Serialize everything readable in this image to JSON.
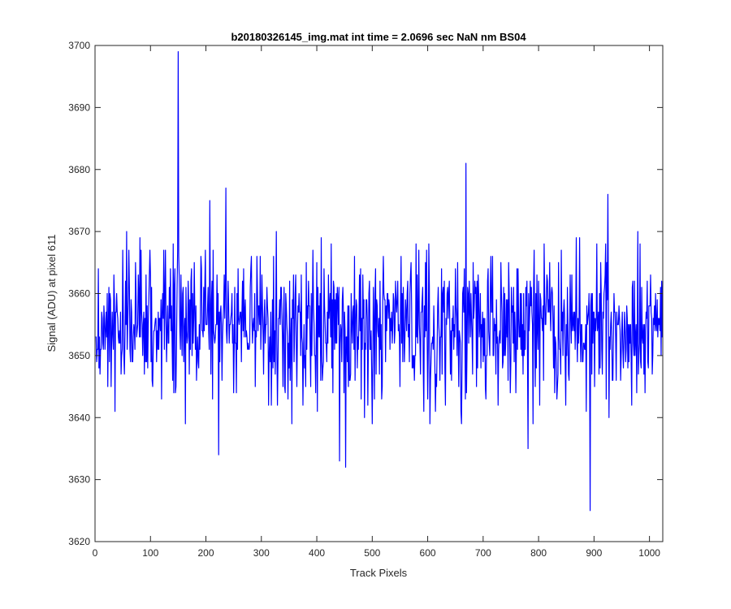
{
  "chart_data": {
    "type": "line",
    "title": "b20180326145_img.mat int time = 2.0696 sec  NaN nm BS04",
    "xlabel": "Track Pixels",
    "ylabel": "Signal (ADU) at pixel 611",
    "xlim": [
      0,
      1024
    ],
    "ylim": [
      3620,
      3700
    ],
    "xticks": [
      0,
      100,
      200,
      300,
      400,
      500,
      600,
      700,
      800,
      900,
      1000
    ],
    "yticks": [
      3620,
      3630,
      3640,
      3650,
      3660,
      3670,
      3680,
      3690,
      3700
    ],
    "xtick_labels": [
      "0",
      "100",
      "200",
      "300",
      "400",
      "500",
      "600",
      "700",
      "800",
      "900",
      "1000"
    ],
    "ytick_labels": [
      "3620",
      "3630",
      "3640",
      "3650",
      "3660",
      "3670",
      "3680",
      "3690",
      "3700"
    ],
    "grid": false,
    "series": [
      {
        "color": "#0000ff",
        "x_start": 1,
        "x_step": 1,
        "baseline": 3655,
        "noise_std": 6,
        "random_seed": 611,
        "spikes": [
          {
            "x": 150,
            "y": 3699
          },
          {
            "x": 223,
            "y": 3634
          },
          {
            "x": 236,
            "y": 3677
          },
          {
            "x": 441,
            "y": 3633
          },
          {
            "x": 452,
            "y": 3632
          },
          {
            "x": 669,
            "y": 3681
          },
          {
            "x": 781,
            "y": 3635
          },
          {
            "x": 893,
            "y": 3625
          },
          {
            "x": 925,
            "y": 3676
          }
        ],
        "range_clip": [
          3639,
          3675
        ]
      }
    ]
  }
}
